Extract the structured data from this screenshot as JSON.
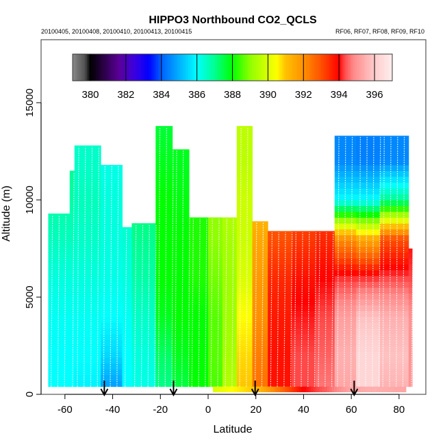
{
  "chart_data": {
    "type": "heatmap",
    "title": "HIPPO3 Northbound CO2_QCLS",
    "subtitle_left": "20100405, 20100408, 20100410, 20100413, 20100415",
    "subtitle_right": "RF06, RF07, RF08, RF09, RF10",
    "xlabel": "Latitude",
    "ylabel": "Altitude (m)",
    "xlim": [
      -70,
      91
    ],
    "ylim": [
      0,
      18200
    ],
    "xticks": [
      -60,
      -40,
      -20,
      0,
      20,
      40,
      60,
      80
    ],
    "yticks": [
      0,
      5000,
      10000,
      15000
    ],
    "colorbar": {
      "range": [
        379,
        397
      ],
      "ticks": [
        380,
        382,
        384,
        386,
        388,
        390,
        392,
        394,
        396
      ],
      "stops": [
        [
          379,
          "#8a8a8a"
        ],
        [
          379.7,
          "#505050"
        ],
        [
          380,
          "#000000"
        ],
        [
          381.6,
          "#5a0096"
        ],
        [
          382.5,
          "#3a00e0"
        ],
        [
          383.3,
          "#0000ff"
        ],
        [
          384,
          "#0060ff"
        ],
        [
          385.3,
          "#00c8ff"
        ],
        [
          386,
          "#00ffff"
        ],
        [
          387,
          "#00ff90"
        ],
        [
          388,
          "#00ff00"
        ],
        [
          389,
          "#90ff00"
        ],
        [
          390.5,
          "#ffff00"
        ],
        [
          391,
          "#ffc000"
        ],
        [
          392,
          "#ff9000"
        ],
        [
          393,
          "#ff5000"
        ],
        [
          394,
          "#ff0000"
        ],
        [
          394.3,
          "#ff4848"
        ],
        [
          394.8,
          "#ff8888"
        ],
        [
          395.4,
          "#ffaaaa"
        ],
        [
          396,
          "#ffcccc"
        ],
        [
          397,
          "#ffeeee"
        ]
      ]
    },
    "altitude_levels_m": [
      0,
      2000,
      4000,
      6000,
      8000,
      10000,
      12000,
      14000
    ],
    "columns": [
      {
        "lat": [
          -67,
          -58
        ],
        "bottom": 400,
        "top": 9300,
        "co2": [
          386,
          386,
          386.1,
          386.3,
          386.6,
          386.8,
          387,
          387
        ]
      },
      {
        "lat": [
          -58,
          -56
        ],
        "bottom": 400,
        "top": 11500,
        "co2": [
          386,
          386,
          386.1,
          386.3,
          386.6,
          386.8,
          387,
          387
        ]
      },
      {
        "lat": [
          -56,
          -45
        ],
        "bottom": 400,
        "top": 12800,
        "co2": [
          385.8,
          386,
          386.1,
          386.3,
          386.5,
          386.6,
          386.5,
          386.5
        ]
      },
      {
        "lat": [
          -45,
          -36
        ],
        "bottom": 400,
        "top": 11800,
        "co2": [
          384.6,
          385.5,
          386,
          386.2,
          386.3,
          386.3,
          386.2,
          386.2
        ]
      },
      {
        "lat": [
          -36,
          -32
        ],
        "bottom": 400,
        "top": 8600,
        "co2": [
          386,
          386,
          386.1,
          386.3,
          386.4,
          386.5,
          386.5,
          386.5
        ]
      },
      {
        "lat": [
          -32,
          -22
        ],
        "bottom": 400,
        "top": 8800,
        "co2": [
          386.2,
          386.3,
          386.5,
          386.8,
          387,
          387.2,
          387.2,
          387.2
        ]
      },
      {
        "lat": [
          -22,
          -15
        ],
        "bottom": 400,
        "top": 13800,
        "co2": [
          387,
          387.3,
          387.8,
          388,
          388,
          388,
          387.8,
          387.6
        ]
      },
      {
        "lat": [
          -15,
          -8
        ],
        "bottom": 400,
        "top": 12600,
        "co2": [
          387.5,
          387.8,
          388,
          388,
          388,
          387.9,
          387.8,
          387.8
        ]
      },
      {
        "lat": [
          -8,
          0
        ],
        "bottom": 400,
        "top": 9100,
        "co2": [
          388,
          388,
          388,
          388.2,
          388.2,
          388.2,
          388.2,
          388.2
        ]
      },
      {
        "lat": [
          0,
          6
        ],
        "bottom": 400,
        "top": 9100,
        "co2": [
          388.5,
          388.6,
          388.6,
          388.8,
          389,
          389,
          389,
          389
        ]
      },
      {
        "lat": [
          6,
          12
        ],
        "bottom": 400,
        "top": 9100,
        "co2": [
          389.5,
          389.3,
          389.2,
          389.2,
          389.3,
          389.5,
          389.5,
          389.5
        ]
      },
      {
        "lat": [
          12,
          18.5
        ],
        "bottom": 400,
        "top": 13800,
        "co2": [
          391,
          390.8,
          390.5,
          390,
          389.8,
          389.8,
          389.6,
          389.6
        ]
      },
      {
        "lat": [
          18.5,
          25
        ],
        "bottom": 400,
        "top": 8900,
        "co2": [
          392.5,
          392.3,
          392,
          391.8,
          391.5,
          391,
          390.5,
          390.5
        ]
      },
      {
        "lat": [
          25,
          35
        ],
        "bottom": 400,
        "top": 8400,
        "co2": [
          393.8,
          393.8,
          393.7,
          393.5,
          393,
          392.8,
          392.8,
          392.8
        ]
      },
      {
        "lat": [
          35,
          45
        ],
        "bottom": 400,
        "top": 8400,
        "co2": [
          394.3,
          394.3,
          394.1,
          393.8,
          393.3,
          393,
          393,
          393
        ]
      },
      {
        "lat": [
          45,
          53
        ],
        "bottom": 400,
        "top": 8400,
        "co2": [
          394.7,
          394.5,
          394.3,
          394,
          393.5,
          393,
          393,
          393
        ]
      },
      {
        "lat": [
          53,
          62
        ],
        "bottom": 400,
        "top": 13300,
        "co2": [
          395.3,
          395.5,
          395.2,
          394.2,
          392,
          386,
          384.5,
          384.5
        ]
      },
      {
        "lat": [
          62,
          72
        ],
        "bottom": 400,
        "top": 13300,
        "co2": [
          396.3,
          396.3,
          395.8,
          394.2,
          391.5,
          386,
          384.4,
          384.4
        ]
      },
      {
        "lat": [
          72,
          84
        ],
        "bottom": 400,
        "top": 13300,
        "co2": [
          395.5,
          395.8,
          395.5,
          394.3,
          393,
          387,
          384.5,
          384.5
        ]
      },
      {
        "lat": [
          84,
          85.5
        ],
        "bottom": 400,
        "top": 7500,
        "co2": [
          395,
          395,
          395,
          394.3,
          394,
          394,
          394,
          394
        ]
      }
    ],
    "surface_strip": {
      "altitude_range": [
        0,
        400
      ],
      "lat": [
        2,
        10,
        20,
        30,
        40,
        50,
        60,
        70,
        83
      ],
      "co2": [
        390,
        390.5,
        391,
        392.5,
        394,
        394.5,
        395.3,
        395.5,
        395.3
      ]
    },
    "arrow_latitudes": [
      -43.5,
      -14.5,
      19.7,
      61.2
    ]
  }
}
